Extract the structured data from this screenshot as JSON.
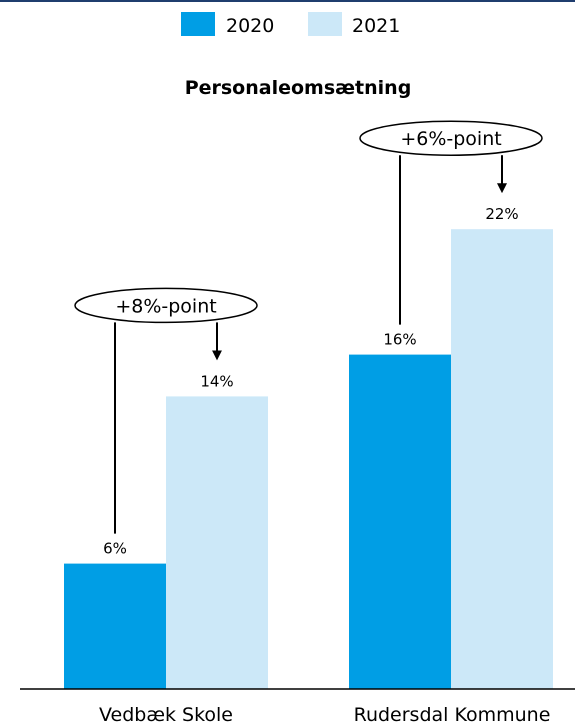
{
  "chart_data": {
    "type": "bar",
    "title": "Personaleomsætning",
    "categories": [
      "Vedbæk Skole",
      "Rudersdal Kommune"
    ],
    "series": [
      {
        "name": "2020",
        "values": [
          6,
          16
        ],
        "color": "#009ee5"
      },
      {
        "name": "2021",
        "values": [
          14,
          22
        ],
        "color": "#cce8f8"
      }
    ],
    "data_labels": [
      [
        "6%",
        "16%"
      ],
      [
        "14%",
        "22%"
      ]
    ],
    "annotations": [
      "+8%-point",
      "+6%-point"
    ],
    "ylim": [
      0,
      25
    ],
    "grid": false,
    "legend_position": "top-center",
    "xlabel": "",
    "ylabel": ""
  }
}
